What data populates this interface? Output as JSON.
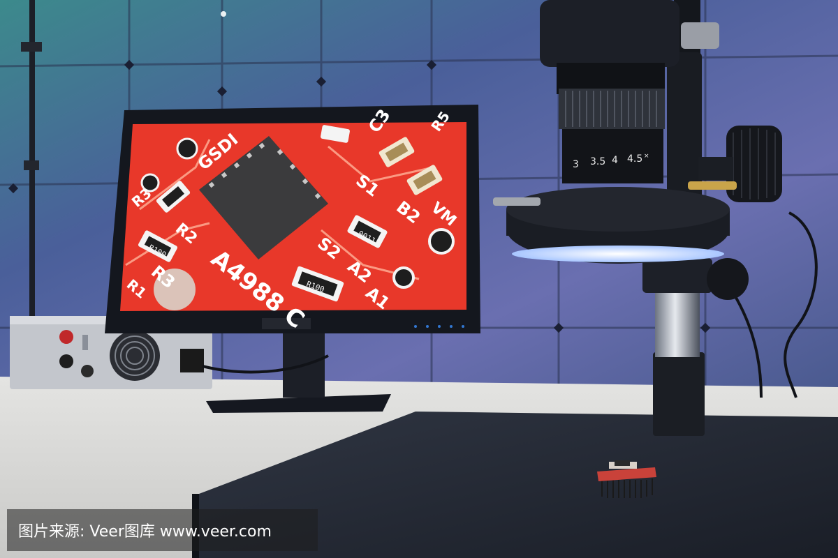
{
  "monitor": {
    "pcb_labels": {
      "part_number": "A4988 C",
      "labels": [
        "GSDI",
        "C3",
        "R3",
        "S1",
        "B2",
        "S2",
        "A2",
        "A1",
        "R2",
        "R3",
        "R1",
        "VM",
        "R5"
      ],
      "resistor_codes": [
        "R100",
        "0011",
        "R100"
      ]
    }
  },
  "microscope": {
    "zoom_scale": [
      "3",
      "3.5",
      "4",
      "4.5",
      "×"
    ]
  },
  "watermark": {
    "text": "图片来源: Veer图库 www.veer.com"
  },
  "colors": {
    "pcb_red": "#e8382a",
    "wall_blue": "#3b4f86",
    "desk": "#d9d9d6",
    "microscope_base": "#2a2f3a",
    "ring_light": "#e8f2ff"
  }
}
